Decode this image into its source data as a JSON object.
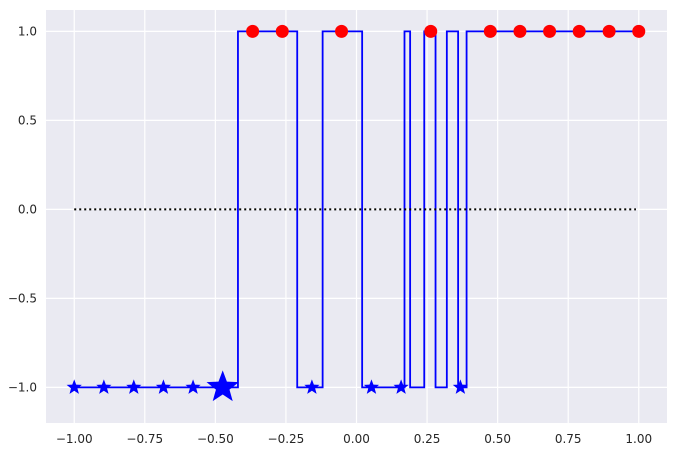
{
  "chart_data": {
    "type": "line",
    "title": "",
    "xlabel": "",
    "ylabel": "",
    "xlim": [
      -1.1,
      1.1
    ],
    "ylim": [
      -1.2,
      1.12
    ],
    "grid": true,
    "x_ticks": [
      -1.0,
      -0.75,
      -0.5,
      -0.25,
      0.0,
      0.25,
      0.5,
      0.75,
      1.0
    ],
    "x_tick_labels": [
      "−1.00",
      "−0.75",
      "−0.50",
      "−0.25",
      "0.00",
      "0.25",
      "0.50",
      "0.75",
      "1.00"
    ],
    "y_ticks": [
      -1.0,
      -0.5,
      0.0,
      0.5,
      1.0
    ],
    "y_tick_labels": [
      "−1.0",
      "−0.5",
      "0.0",
      "0.5",
      "1.0"
    ],
    "series": [
      {
        "kind": "step-line",
        "color": "#0000ff",
        "points": [
          [
            -1.0,
            -1
          ],
          [
            -0.42,
            -1
          ],
          [
            -0.42,
            1
          ],
          [
            -0.21,
            1
          ],
          [
            -0.21,
            -1
          ],
          [
            -0.12,
            -1
          ],
          [
            -0.12,
            1
          ],
          [
            0.02,
            1
          ],
          [
            0.02,
            -1
          ],
          [
            0.17,
            -1
          ],
          [
            0.17,
            1
          ],
          [
            0.19,
            1
          ],
          [
            0.19,
            -1
          ],
          [
            0.24,
            -1
          ],
          [
            0.24,
            1
          ],
          [
            0.28,
            1
          ],
          [
            0.28,
            -1
          ],
          [
            0.32,
            -1
          ],
          [
            0.32,
            1
          ],
          [
            0.36,
            1
          ],
          [
            0.36,
            -1
          ],
          [
            0.39,
            -1
          ],
          [
            0.39,
            1
          ],
          [
            1.0,
            1
          ]
        ]
      },
      {
        "kind": "dotted-line",
        "color": "#000000",
        "points": [
          [
            -1.0,
            0.0
          ],
          [
            0.99,
            0.0
          ]
        ]
      },
      {
        "kind": "star-markers",
        "color": "#0000ff",
        "x": [
          -1.0,
          -0.895,
          -0.789,
          -0.684,
          -0.579,
          -0.158,
          0.053,
          0.158,
          0.368
        ],
        "y": [
          -1,
          -1,
          -1,
          -1,
          -1,
          -1,
          -1,
          -1,
          -1
        ]
      },
      {
        "kind": "large-star-marker",
        "color": "#0000ff",
        "x": [
          -0.474
        ],
        "y": [
          -1
        ]
      },
      {
        "kind": "circle-markers",
        "color": "#ff0000",
        "x": [
          -0.368,
          -0.263,
          -0.053,
          0.263,
          0.474,
          0.579,
          0.684,
          0.789,
          0.895,
          1.0
        ],
        "y": [
          1,
          1,
          1,
          1,
          1,
          1,
          1,
          1,
          1,
          1
        ]
      }
    ]
  },
  "style": {
    "plot_background": "#eaeaf2",
    "grid_color": "#ffffff"
  }
}
